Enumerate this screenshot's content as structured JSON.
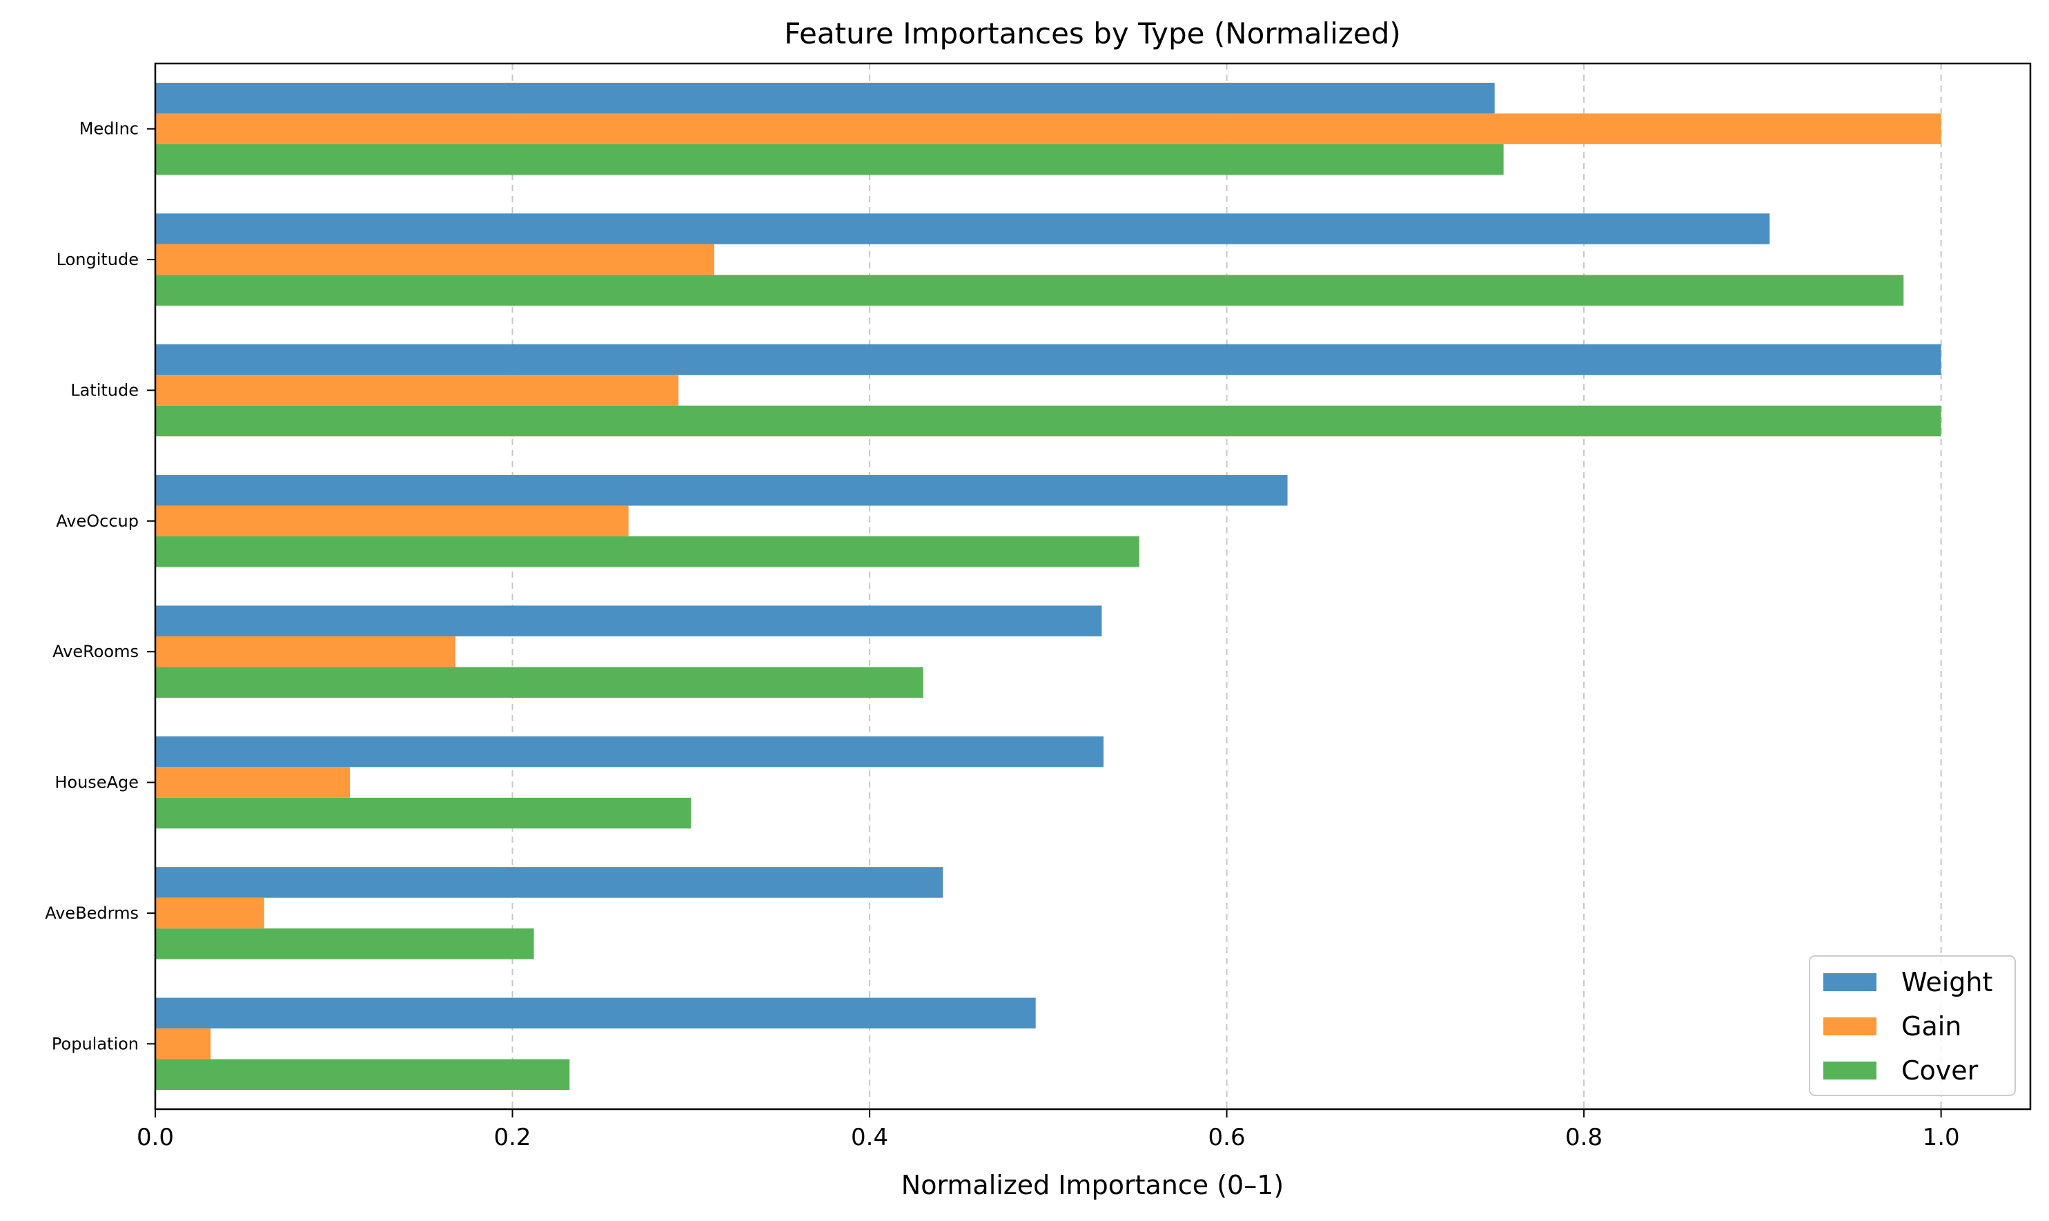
{
  "chart_data": {
    "type": "bar",
    "orientation": "horizontal",
    "title": "Feature Importances by Type (Normalized)",
    "xlabel": "Normalized Importance (0–1)",
    "ylabel": "",
    "xlim": [
      0,
      1.05
    ],
    "x_ticks": [
      "0.0",
      "0.2",
      "0.4",
      "0.6",
      "0.8",
      "1.0"
    ],
    "x_tick_values": [
      0,
      0.2,
      0.4,
      0.6,
      0.8,
      1.0
    ],
    "grid": "x-axis dashed",
    "legend_position": "lower-right",
    "categories": [
      "MedInc",
      "Longitude",
      "Latitude",
      "AveOccup",
      "AveRooms",
      "HouseAge",
      "AveBedrms",
      "Population"
    ],
    "series": [
      {
        "name": "Weight",
        "color": "#4a90c2",
        "values": [
          0.75,
          0.904,
          1.0,
          0.634,
          0.53,
          0.531,
          0.441,
          0.493
        ]
      },
      {
        "name": "Gain",
        "color": "#ff9a3c",
        "values": [
          1.0,
          0.313,
          0.293,
          0.265,
          0.168,
          0.109,
          0.061,
          0.031
        ]
      },
      {
        "name": "Cover",
        "color": "#57b357",
        "values": [
          0.755,
          0.979,
          1.0,
          0.551,
          0.43,
          0.3,
          0.212,
          0.232
        ]
      }
    ]
  }
}
